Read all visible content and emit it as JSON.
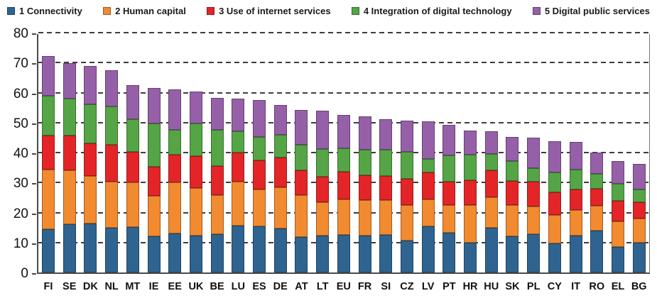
{
  "chart_data": {
    "type": "bar",
    "stacked": true,
    "title": "",
    "xlabel": "",
    "ylabel": "",
    "ylim": [
      0,
      80
    ],
    "yticks": [
      0,
      10,
      20,
      30,
      40,
      50,
      60,
      70,
      80
    ],
    "grid": "horizontal-dashed",
    "legend_position": "top",
    "categories": [
      "FI",
      "SE",
      "DK",
      "NL",
      "MT",
      "IE",
      "EE",
      "UK",
      "BE",
      "LU",
      "ES",
      "DE",
      "AT",
      "LT",
      "EU",
      "FR",
      "SI",
      "CZ",
      "LV",
      "PT",
      "HR",
      "HU",
      "SK",
      "PL",
      "CY",
      "IT",
      "RO",
      "EL",
      "BG"
    ],
    "series": [
      {
        "name": "1 Connectivity",
        "color": "#2F6490",
        "values": [
          14.5,
          16.0,
          16.3,
          14.8,
          15.1,
          12.1,
          13.1,
          12.3,
          12.9,
          15.7,
          15.4,
          14.7,
          11.9,
          12.2,
          12.5,
          12.3,
          12.6,
          10.7,
          15.5,
          13.3,
          10.0,
          15.0,
          12.1,
          12.8,
          9.8,
          12.4,
          14.0,
          8.5,
          9.9
        ]
      },
      {
        "name": "2 Human capital",
        "color": "#F28A30",
        "values": [
          19.8,
          18.1,
          15.8,
          15.6,
          15.0,
          13.4,
          17.0,
          15.8,
          12.9,
          14.6,
          12.2,
          13.8,
          13.9,
          11.2,
          12.0,
          11.8,
          11.6,
          11.9,
          8.8,
          9.2,
          12.4,
          10.0,
          10.4,
          9.1,
          9.4,
          8.4,
          8.3,
          8.6,
          8.1
        ]
      },
      {
        "name": "3 Use of internet services",
        "color": "#E42528",
        "values": [
          11.5,
          11.5,
          11.0,
          12.3,
          10.2,
          9.8,
          9.2,
          10.8,
          9.7,
          9.7,
          9.8,
          9.9,
          8.4,
          8.5,
          9.0,
          8.3,
          8.0,
          8.7,
          9.0,
          7.8,
          8.3,
          9.0,
          8.0,
          8.3,
          7.6,
          6.8,
          5.7,
          6.8,
          5.5
        ]
      },
      {
        "name": "4 Integration of digital technology",
        "color": "#55A546",
        "values": [
          13.2,
          12.4,
          13.0,
          12.8,
          10.8,
          14.5,
          8.4,
          10.7,
          12.0,
          7.1,
          7.7,
          7.5,
          8.4,
          9.4,
          8.0,
          8.5,
          8.7,
          8.9,
          4.6,
          8.8,
          8.5,
          5.5,
          6.6,
          4.5,
          6.7,
          6.7,
          4.9,
          5.7,
          4.3
        ]
      },
      {
        "name": "5 Digital public services",
        "color": "#9660A8",
        "values": [
          13.2,
          11.8,
          12.9,
          11.9,
          11.5,
          11.7,
          13.4,
          10.8,
          10.7,
          10.8,
          12.4,
          10.0,
          11.6,
          12.6,
          11.1,
          11.3,
          10.3,
          10.5,
          12.6,
          10.2,
          8.2,
          7.7,
          8.2,
          10.2,
          10.4,
          9.3,
          7.0,
          7.6,
          8.5
        ]
      }
    ]
  },
  "legend": {
    "items": [
      {
        "label": "1 Connectivity",
        "color": "#2F6490"
      },
      {
        "label": "2 Human capital",
        "color": "#F28A30"
      },
      {
        "label": "3 Use of internet services",
        "color": "#E42528"
      },
      {
        "label": "4 Integration of digital technology",
        "color": "#55A546"
      },
      {
        "label": "5 Digital public services",
        "color": "#9660A8"
      }
    ]
  }
}
